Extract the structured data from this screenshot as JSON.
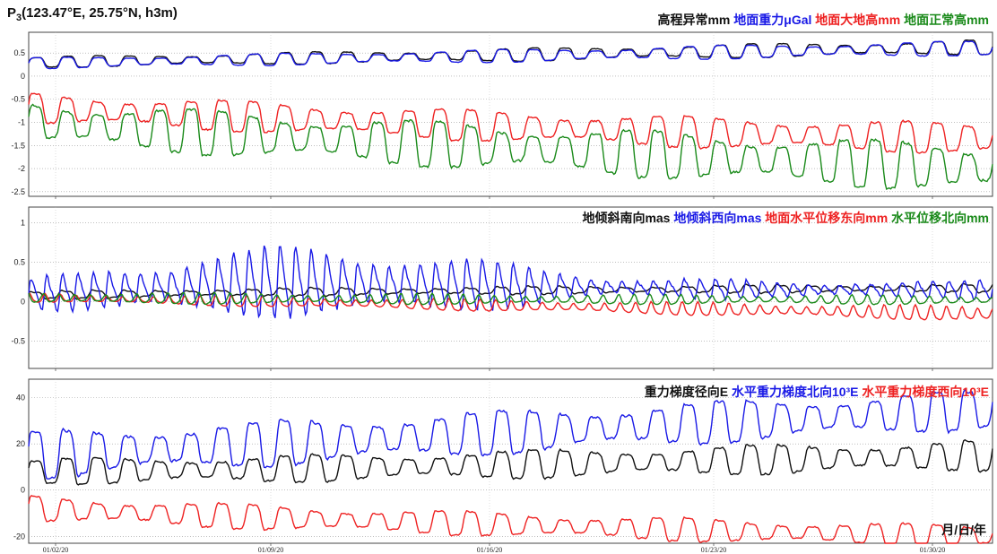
{
  "header": {
    "station_prefix": "P",
    "station_sub": "3",
    "station_rest": "(123.47°E, 25.75°N, h3m)"
  },
  "date_axis_label": "月/日/年",
  "x_ticks": [
    "01/02/20",
    "01/09/20",
    "01/16/20",
    "01/23/20",
    "01/30/20"
  ],
  "chart_data": [
    {
      "type": "line",
      "panel": "top",
      "ylim": [
        -2.6,
        0.95
      ],
      "y_ticks": [
        0.5,
        0,
        -0.5,
        -1,
        -1.5,
        -2,
        -2.5
      ],
      "y_tick_labels": [
        "0.5",
        "0",
        "-0.5",
        "-1",
        "-1.5",
        "-2",
        "-2.5"
      ],
      "x": [
        "01/02/20",
        "01/09/20",
        "01/16/20",
        "01/23/20",
        "01/30/20"
      ],
      "grid": true,
      "legend_position": "top-right",
      "series": [
        {
          "name": "高程异常mm",
          "color": "#111111",
          "values": [
            0.3,
            0.38,
            0.46,
            0.55,
            0.63
          ]
        },
        {
          "name": "地面重力μGal",
          "color": "#1a1ae6",
          "values": [
            0.28,
            0.36,
            0.44,
            0.53,
            0.61
          ]
        },
        {
          "name": "地面大地高mm",
          "color": "#ee2222",
          "values": [
            -0.7,
            -0.9,
            -1.1,
            -1.25,
            -1.35
          ]
        },
        {
          "name": "地面正常高mm",
          "color": "#1a8a1a",
          "values": [
            -1.0,
            -1.3,
            -1.55,
            -1.8,
            -2.0
          ]
        }
      ]
    },
    {
      "type": "line",
      "panel": "middle",
      "ylim": [
        -0.85,
        1.2
      ],
      "y_ticks": [
        1,
        0.5,
        0,
        -0.5
      ],
      "y_tick_labels": [
        "1",
        "0.5",
        "0",
        "-0.5"
      ],
      "x": [
        "01/02/20",
        "01/09/20",
        "01/16/20",
        "01/23/20",
        "01/30/20"
      ],
      "grid": true,
      "legend_position": "top-right",
      "series": [
        {
          "name": "地倾斜南向mas",
          "color": "#111111",
          "values": [
            0.08,
            0.12,
            0.14,
            0.16,
            0.17
          ]
        },
        {
          "name": "地倾斜西向mas",
          "color": "#1a1ae6",
          "values": [
            0.1,
            0.25,
            0.2,
            0.15,
            0.15
          ]
        },
        {
          "name": "地面水平位移东向mm",
          "color": "#ee2222",
          "values": [
            0.05,
            0.0,
            -0.05,
            -0.1,
            -0.15
          ]
        },
        {
          "name": "水平位移北向mm",
          "color": "#1a8a1a",
          "values": [
            0.05,
            0.04,
            0.03,
            0.03,
            0.02
          ]
        }
      ]
    },
    {
      "type": "line",
      "panel": "bottom",
      "ylim": [
        -23,
        48
      ],
      "y_ticks": [
        40,
        20,
        0,
        -20
      ],
      "y_tick_labels": [
        "40",
        "20",
        "0",
        "-20"
      ],
      "x": [
        "01/02/20",
        "01/09/20",
        "01/16/20",
        "01/23/20",
        "01/30/20"
      ],
      "grid": true,
      "legend_position": "top-right",
      "series": [
        {
          "name": "重力梯度径向E",
          "color": "#111111",
          "values": [
            8,
            9,
            11,
            13,
            15
          ]
        },
        {
          "name": "水平重力梯度北向10³E",
          "color": "#1a1ae6",
          "values": [
            15,
            20,
            25,
            30,
            35
          ]
        },
        {
          "name": "水平重力梯度西向10³E",
          "color": "#ee2222",
          "values": [
            -8,
            -12,
            -15,
            -18,
            -20
          ]
        }
      ]
    }
  ]
}
